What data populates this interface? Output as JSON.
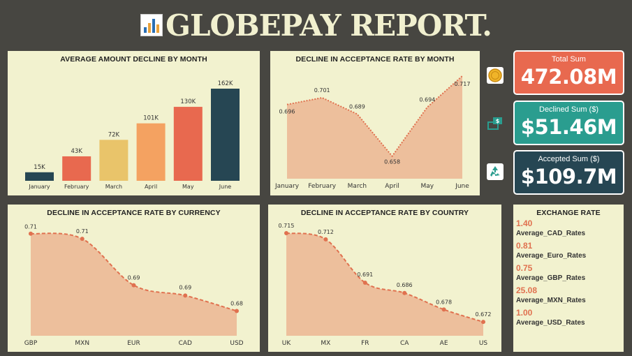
{
  "title": "GLOBEPAY REPORT.",
  "colors": {
    "orange": "#e8694f",
    "teal": "#2a9d8f",
    "navy": "#264653",
    "yellow": "#e9c46a",
    "light_orange": "#f4a261",
    "area_fill": "#edbf9c",
    "line": "#e0714f"
  },
  "icons": {
    "title": "bar-chart-icon",
    "total": "coin-icon",
    "declined": "money-transfer-icon",
    "accepted": "recycle-icon"
  },
  "kpis": {
    "total": {
      "label": "Total Sum",
      "value": "472.08M"
    },
    "declined": {
      "label": "Declined Sum ($)",
      "value": "$51.46M"
    },
    "accepted": {
      "label": "Accepted Sum ($)",
      "value": "$109.7M"
    }
  },
  "exchange": {
    "title": "EXCHANGE RATE",
    "items": [
      {
        "value": "1.40",
        "label": "Average_CAD_Rates"
      },
      {
        "value": "0.81",
        "label": "Average_Euro_Rates"
      },
      {
        "value": "0.75",
        "label": "Average_GBP_Rates"
      },
      {
        "value": "25.08",
        "label": "Average_MXN_Rates"
      },
      {
        "value": "1.00",
        "label": "Average_USD_Rates"
      }
    ]
  },
  "chart_data": [
    {
      "id": "bar_month",
      "type": "bar",
      "title": "AVERAGE AMOUNT DECLINE BY MONTH",
      "categories": [
        "January",
        "February",
        "March",
        "April",
        "May",
        "June"
      ],
      "values": [
        15,
        43,
        72,
        101,
        130,
        162
      ],
      "value_labels": [
        "15K",
        "43K",
        "72K",
        "101K",
        "130K",
        "162K"
      ],
      "colors": [
        "#264653",
        "#e8694f",
        "#e9c46a",
        "#f4a261",
        "#e8694f",
        "#264653"
      ],
      "ylim": [
        0,
        162
      ]
    },
    {
      "id": "area_month",
      "type": "area",
      "title": "DECLINE IN ACCEPTANCE RATE BY MONTH",
      "categories": [
        "January",
        "February",
        "March",
        "April",
        "May",
        "June"
      ],
      "values": [
        0.696,
        0.701,
        0.689,
        0.658,
        0.694,
        0.717
      ],
      "value_labels": [
        "0.696",
        "0.701",
        "0.689",
        "0.658",
        "0.694",
        "0.717"
      ],
      "ylim": [
        0.645,
        0.72
      ]
    },
    {
      "id": "area_currency",
      "type": "area",
      "title": "DECLINE IN ACCEPTANCE RATE BY CURRENCY",
      "categories": [
        "GBP",
        "MXN",
        "EUR",
        "CAD",
        "USD"
      ],
      "values": [
        0.71,
        0.708,
        0.69,
        0.686,
        0.68
      ],
      "value_labels": [
        "0.71",
        "0.71",
        "0.69",
        "0.69",
        "0.68"
      ],
      "ylim": [
        0.675,
        0.711
      ]
    },
    {
      "id": "area_country",
      "type": "area",
      "title": "DECLINE IN ACCEPTANCE RATE BY COUNTRY",
      "categories": [
        "UK",
        "MX",
        "FR",
        "CA",
        "AE",
        "US"
      ],
      "values": [
        0.715,
        0.712,
        0.691,
        0.686,
        0.678,
        0.672
      ],
      "value_labels": [
        "0.715",
        "0.712",
        "0.691",
        "0.686",
        "0.678",
        "0.672"
      ],
      "ylim": [
        0.668,
        0.716
      ]
    }
  ]
}
